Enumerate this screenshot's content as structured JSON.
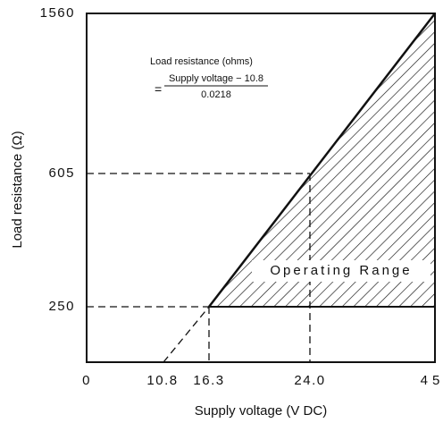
{
  "formula": {
    "title": "Load resistance (ohms)",
    "equals": "=",
    "numerator": "Supply voltage − 10.8",
    "denominator": "0.0218"
  },
  "x_axis": {
    "label": "Supply voltage (V DC)",
    "ticks": [
      "0",
      "10.8",
      "16.3",
      "24.0",
      "45"
    ]
  },
  "y_axis": {
    "label": "Load resistance (Ω)",
    "ticks": [
      "250",
      "605",
      "1560"
    ]
  },
  "region_label": "Operating Range"
}
